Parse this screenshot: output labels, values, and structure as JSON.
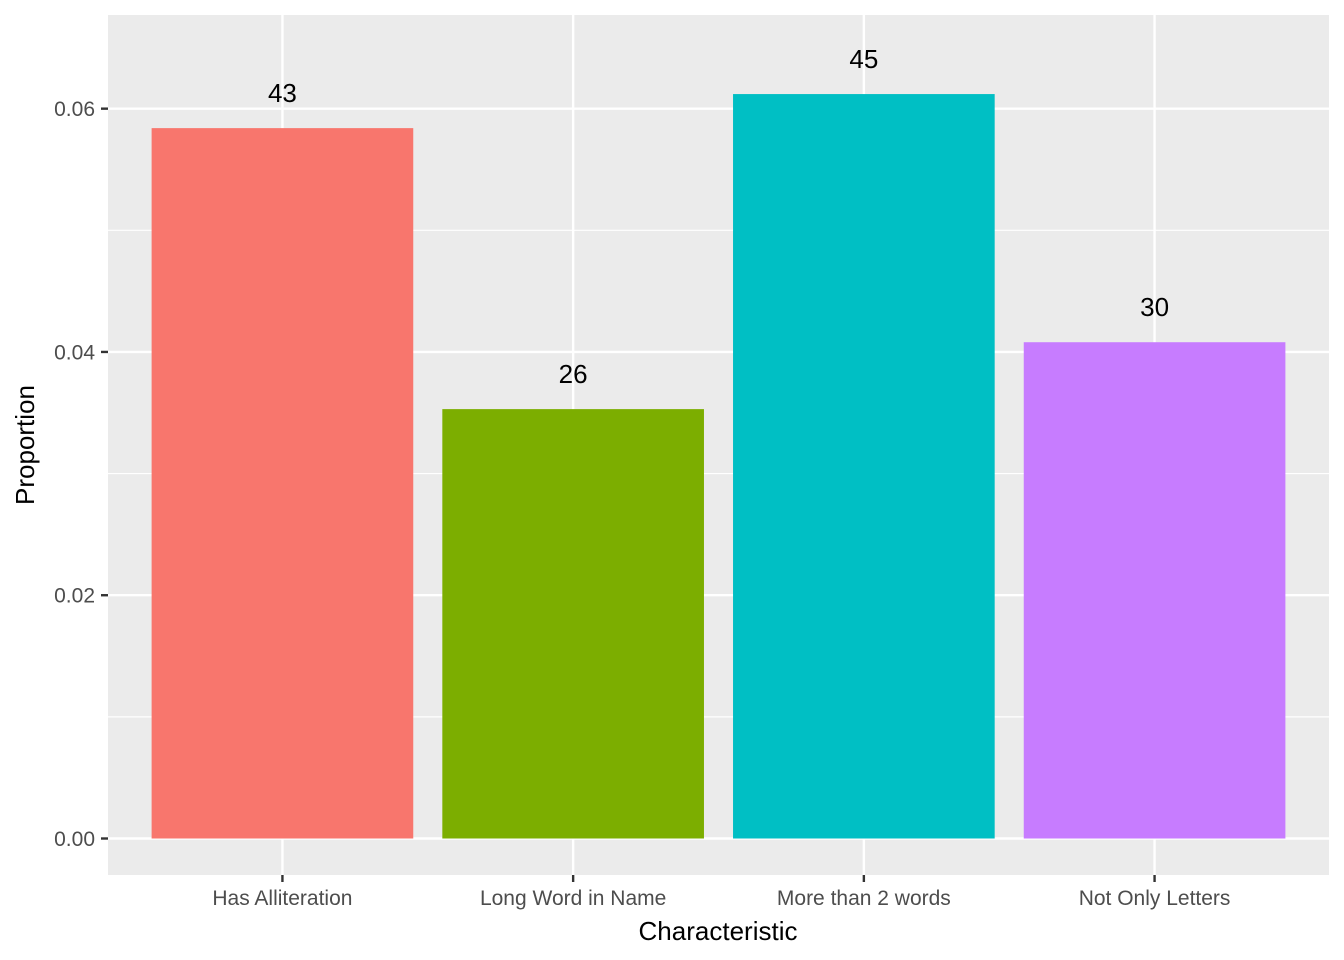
{
  "chart_data": {
    "type": "bar",
    "title": "",
    "xlabel": "Characteristic",
    "ylabel": "Proportion",
    "categories": [
      "Has Alliteration",
      "Long Word in Name",
      "More than 2 words",
      "Not Only Letters"
    ],
    "values": [
      0.0584,
      0.0353,
      0.0612,
      0.0408
    ],
    "data_labels": [
      "43",
      "26",
      "45",
      "30"
    ],
    "colors": [
      "#F8766D",
      "#7CAE00",
      "#00BFC4",
      "#C77CFF"
    ],
    "ylim": [
      -0.003,
      0.0677
    ],
    "yticks": [
      0,
      0.02,
      0.04,
      0.06
    ],
    "ytick_labels": [
      "0.00",
      "0.02",
      "0.04",
      "0.06"
    ],
    "grid": true,
    "legend": "none",
    "panel_background": "#EBEBEB",
    "gridline_color": "#FFFFFF"
  }
}
